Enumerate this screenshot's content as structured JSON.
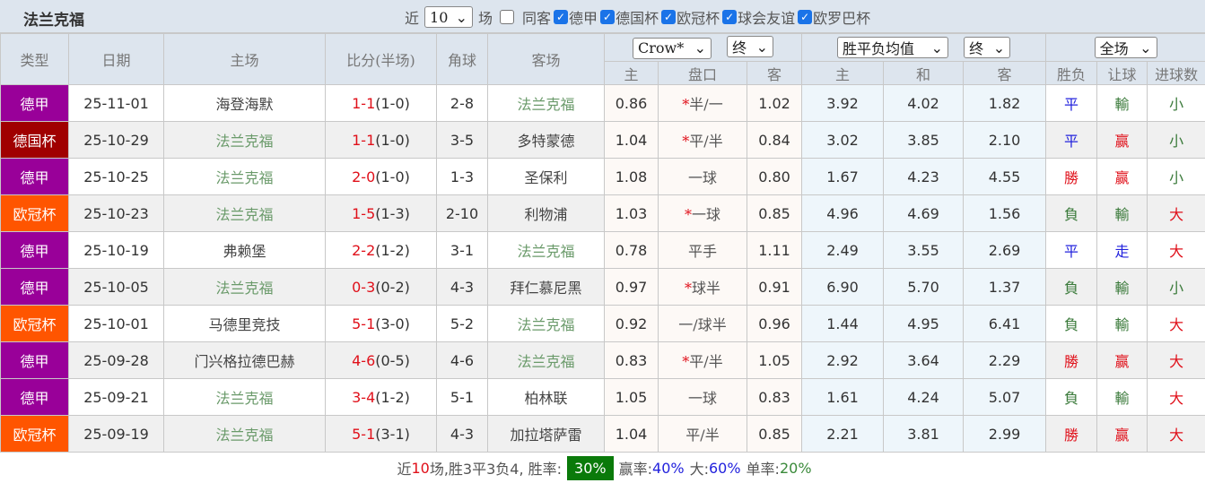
{
  "title": "法兰克福",
  "filters": {
    "near_label": "近",
    "count": "10",
    "games_label": "场",
    "same_label": "同客",
    "same_checked": false,
    "competitions": [
      {
        "label": "德甲",
        "checked": true
      },
      {
        "label": "德国杯",
        "checked": true
      },
      {
        "label": "欧冠杯",
        "checked": true
      },
      {
        "label": "球会友谊",
        "checked": true
      },
      {
        "label": "欧罗巴杯",
        "checked": true
      }
    ]
  },
  "header": {
    "type": "类型",
    "date": "日期",
    "home": "主场",
    "score": "比分(半场)",
    "corner": "角球",
    "away": "客场",
    "company": "Crow*",
    "stage1": "终",
    "avg": "胜平负均值",
    "stage2": "终",
    "scope": "全场",
    "ah_home": "主",
    "ah_line": "盘口",
    "ah_away": "客",
    "eu_home": "主",
    "eu_draw": "和",
    "eu_away": "客",
    "wl": "胜负",
    "hcp": "让球",
    "ou": "进球数"
  },
  "colors": {
    "德甲": "#990099",
    "德国杯": "#a00000",
    "欧冠杯": "#ff5500",
    "win": "#e0101a",
    "draw": "#2222dd",
    "loss": "#3a7a3a"
  },
  "rows": [
    {
      "type": "德甲",
      "date": "25-11-01",
      "home": "海登海默",
      "ft": "1-1",
      "ht": "(1-0)",
      "corner": "2-8",
      "away": "法兰克福",
      "ah_h": "0.86",
      "star": "*",
      "line": "半/一",
      "ah_a": "1.02",
      "eu_h": "3.92",
      "eu_d": "4.02",
      "eu_a": "1.82",
      "wl": "平",
      "hcp": "輸",
      "ou": "小"
    },
    {
      "type": "德国杯",
      "date": "25-10-29",
      "home": "法兰克福",
      "ft": "1-1",
      "ht": "(1-0)",
      "corner": "3-5",
      "away": "多特蒙德",
      "ah_h": "1.04",
      "star": "*",
      "line": "平/半",
      "ah_a": "0.84",
      "eu_h": "3.02",
      "eu_d": "3.85",
      "eu_a": "2.10",
      "wl": "平",
      "hcp": "赢",
      "ou": "小"
    },
    {
      "type": "德甲",
      "date": "25-10-25",
      "home": "法兰克福",
      "ft": "2-0",
      "ht": "(1-0)",
      "corner": "1-3",
      "away": "圣保利",
      "ah_h": "1.08",
      "star": "",
      "line": "一球",
      "ah_a": "0.80",
      "eu_h": "1.67",
      "eu_d": "4.23",
      "eu_a": "4.55",
      "wl": "勝",
      "hcp": "赢",
      "ou": "小"
    },
    {
      "type": "欧冠杯",
      "date": "25-10-23",
      "home": "法兰克福",
      "ft": "1-5",
      "ht": "(1-3)",
      "corner": "2-10",
      "away": "利物浦",
      "ah_h": "1.03",
      "star": "*",
      "line": "一球",
      "ah_a": "0.85",
      "eu_h": "4.96",
      "eu_d": "4.69",
      "eu_a": "1.56",
      "wl": "負",
      "hcp": "輸",
      "ou": "大"
    },
    {
      "type": "德甲",
      "date": "25-10-19",
      "home": "弗赖堡",
      "ft": "2-2",
      "ht": "(1-2)",
      "corner": "3-1",
      "away": "法兰克福",
      "ah_h": "0.78",
      "star": "",
      "line": "平手",
      "ah_a": "1.11",
      "eu_h": "2.49",
      "eu_d": "3.55",
      "eu_a": "2.69",
      "wl": "平",
      "hcp": "走",
      "ou": "大"
    },
    {
      "type": "德甲",
      "date": "25-10-05",
      "home": "法兰克福",
      "ft": "0-3",
      "ht": "(0-2)",
      "corner": "4-3",
      "away": "拜仁慕尼黑",
      "ah_h": "0.97",
      "star": "*",
      "line": "球半",
      "ah_a": "0.91",
      "eu_h": "6.90",
      "eu_d": "5.70",
      "eu_a": "1.37",
      "wl": "負",
      "hcp": "輸",
      "ou": "小"
    },
    {
      "type": "欧冠杯",
      "date": "25-10-01",
      "home": "马德里竞技",
      "ft": "5-1",
      "ht": "(3-0)",
      "corner": "5-2",
      "away": "法兰克福",
      "ah_h": "0.92",
      "star": "",
      "line": "一/球半",
      "ah_a": "0.96",
      "eu_h": "1.44",
      "eu_d": "4.95",
      "eu_a": "6.41",
      "wl": "負",
      "hcp": "輸",
      "ou": "大"
    },
    {
      "type": "德甲",
      "date": "25-09-28",
      "home": "门兴格拉德巴赫",
      "ft": "4-6",
      "ht": "(0-5)",
      "corner": "4-6",
      "away": "法兰克福",
      "ah_h": "0.83",
      "star": "*",
      "line": "平/半",
      "ah_a": "1.05",
      "eu_h": "2.92",
      "eu_d": "3.64",
      "eu_a": "2.29",
      "wl": "勝",
      "hcp": "赢",
      "ou": "大"
    },
    {
      "type": "德甲",
      "date": "25-09-21",
      "home": "法兰克福",
      "ft": "3-4",
      "ht": "(1-2)",
      "corner": "5-1",
      "away": "柏林联",
      "ah_h": "1.05",
      "star": "",
      "line": "一球",
      "ah_a": "0.83",
      "eu_h": "1.61",
      "eu_d": "4.24",
      "eu_a": "5.07",
      "wl": "負",
      "hcp": "輸",
      "ou": "大"
    },
    {
      "type": "欧冠杯",
      "date": "25-09-19",
      "home": "法兰克福",
      "ft": "5-1",
      "ht": "(3-1)",
      "corner": "4-3",
      "away": "加拉塔萨雷",
      "ah_h": "1.04",
      "star": "",
      "line": "平/半",
      "ah_a": "0.85",
      "eu_h": "2.21",
      "eu_d": "3.81",
      "eu_a": "2.99",
      "wl": "勝",
      "hcp": "赢",
      "ou": "大"
    }
  ],
  "footer": {
    "p1": "近",
    "n": "10",
    "p2": "场,胜3平3负4, 胜率:",
    "win_rate": "30%",
    "p3": "赢率:",
    "hcp_rate": "40%",
    "p4": "大:",
    "over_rate": "60%",
    "p5": "单率:",
    "odd_rate": "20%"
  }
}
